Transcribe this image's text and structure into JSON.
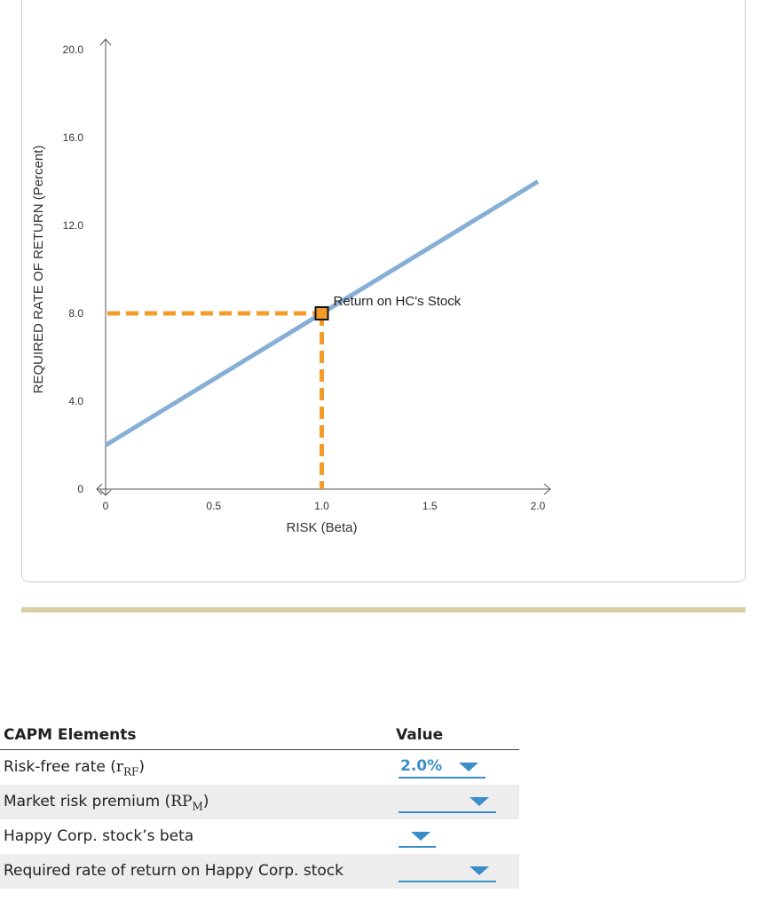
{
  "chart_data": {
    "type": "line",
    "xlabel": "RISK (Beta)",
    "ylabel": "REQUIRED RATE OF RETURN (Percent)",
    "xlim": [
      0,
      2.0
    ],
    "ylim": [
      0,
      20.0
    ],
    "x_ticks": [
      "0",
      "0.5",
      "1.0",
      "1.5",
      "2.0"
    ],
    "y_ticks": [
      "0",
      "4.0",
      "8.0",
      "12.0",
      "16.0",
      "20.0"
    ],
    "series": [
      {
        "x": [
          0,
          2.0
        ],
        "y": [
          2.0,
          14.0
        ],
        "color": "#86afd6"
      }
    ],
    "point": {
      "x": 1.0,
      "y": 8.0,
      "label": "Return on HC's Stock",
      "color": "#f39c2a"
    },
    "guide_color": "#f39c2a",
    "grid": false
  },
  "table": {
    "header_element": "CAPM Elements",
    "header_value": "Value",
    "rows": [
      {
        "label": "Risk-free rate (",
        "sym": "r",
        "sub": "RF",
        "tail": ")",
        "value": "2.0%"
      },
      {
        "label": "Market risk premium (",
        "sym": "RP",
        "sub": "M",
        "tail": ")",
        "value": ""
      },
      {
        "label": "Happy Corp. stock’s beta",
        "sym": "",
        "sub": "",
        "tail": "",
        "value": ""
      },
      {
        "label": "Required rate of return on Happy Corp. stock",
        "sym": "",
        "sub": "",
        "tail": "",
        "value": ""
      }
    ]
  },
  "colors": {
    "accent": "#3a8ec8",
    "divider": "#d8cfa6"
  }
}
